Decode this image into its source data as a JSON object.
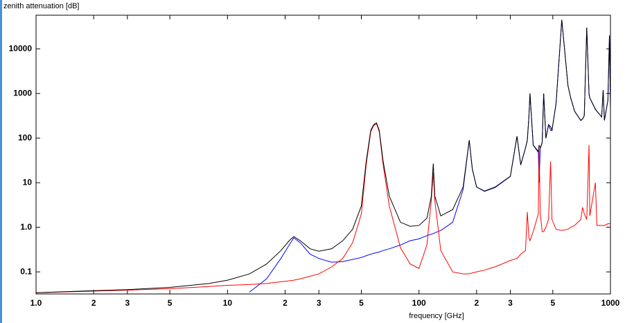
{
  "chart_data": {
    "type": "line",
    "y_label": "zenith attenuation [dB]",
    "x_label": "frequency [GHz]",
    "log_x": true,
    "log_y": true,
    "xlim": [
      1,
      1000
    ],
    "ylim": [
      0.032,
      57000
    ],
    "xticks": [
      {
        "value": 1,
        "label": "1.0"
      },
      2,
      3,
      5,
      10,
      {
        "value": 20,
        "label": "2"
      },
      {
        "value": 30,
        "label": "3"
      },
      {
        "value": 50,
        "label": "5"
      },
      100,
      {
        "value": 200,
        "label": "2"
      },
      {
        "value": 300,
        "label": "3"
      },
      {
        "value": 500,
        "label": "5"
      },
      1000
    ],
    "yticks": [
      0.1,
      {
        "value": 1,
        "label": "1.0"
      },
      10,
      100,
      1000,
      10000
    ],
    "x": [
      1,
      2,
      3,
      5,
      8,
      10,
      13,
      16,
      19,
      21,
      22.2,
      24,
      27,
      30,
      35,
      40,
      45,
      50,
      53,
      56,
      58,
      60,
      62,
      65,
      70,
      80,
      90,
      100,
      110,
      116,
      118.75,
      121,
      130,
      150,
      170,
      183,
      190,
      200,
      220,
      250,
      300,
      325,
      340,
      360,
      368,
      375,
      380,
      395,
      420,
      424,
      430,
      440,
      448,
      460,
      475,
      487,
      495,
      520,
      557,
      600,
      620,
      650,
      700,
      715,
      730,
      752,
      773,
      780,
      834,
      850,
      900,
      916,
      930,
      970,
      988,
      1000
    ],
    "series": [
      {
        "color": "#0000ff",
        "values": [
          null,
          null,
          null,
          null,
          null,
          null,
          0.035,
          0.07,
          0.2,
          0.4,
          0.58,
          0.45,
          0.25,
          0.2,
          0.165,
          0.17,
          0.19,
          0.21,
          0.23,
          0.25,
          0.26,
          0.27,
          0.28,
          0.3,
          0.33,
          0.4,
          0.5,
          0.55,
          0.65,
          0.7,
          0.72,
          0.75,
          0.85,
          1.3,
          7,
          90,
          20,
          8,
          6.4,
          7.8,
          13.8,
          110,
          25,
          60,
          88,
          300,
          1000,
          69,
          48,
          10,
          58,
          79,
          1000,
          99,
          198,
          150,
          148,
          599,
          45000,
          1500,
          799,
          399,
          248,
          267,
          318,
          30000,
          930,
          798,
          440,
          399,
          299,
          1199,
          249,
          699,
          20000,
          499
        ]
      },
      {
        "color": "#ff0000",
        "values": [
          0.034,
          0.037,
          0.039,
          0.042,
          0.047,
          0.05,
          0.052,
          0.055,
          0.06,
          0.063,
          0.065,
          0.07,
          0.08,
          0.09,
          0.13,
          0.2,
          0.45,
          2,
          25,
          140,
          190,
          210,
          140,
          25,
          3,
          0.35,
          0.15,
          0.12,
          0.4,
          4,
          17,
          4,
          0.3,
          0.1,
          0.09,
          0.09,
          0.095,
          0.1,
          0.11,
          0.13,
          0.18,
          0.2,
          0.25,
          0.3,
          2.2,
          0.6,
          0.5,
          0.8,
          2,
          60,
          2,
          0.8,
          0.8,
          1,
          1.5,
          30,
          1.5,
          0.9,
          0.85,
          0.9,
          1.0,
          1.1,
          1.5,
          2.8,
          2,
          1.5,
          70,
          1.8,
          10,
          1.1,
          1.1,
          1.1,
          1.1,
          1.2,
          1.2,
          1.2
        ]
      },
      {
        "color": "#000000",
        "values": [
          0.034,
          0.038,
          0.04,
          0.045,
          0.055,
          0.065,
          0.09,
          0.15,
          0.3,
          0.5,
          0.62,
          0.5,
          0.33,
          0.29,
          0.33,
          0.5,
          0.9,
          3,
          30,
          150,
          200,
          220,
          150,
          30,
          5,
          1.3,
          1.05,
          1.1,
          1.6,
          5,
          27,
          5,
          1.8,
          2.5,
          8,
          90,
          20,
          8,
          6.5,
          8,
          14,
          110,
          25,
          60,
          90,
          300,
          1000,
          70,
          50,
          70,
          60,
          80,
          1000,
          100,
          200,
          180,
          150,
          600,
          45000,
          1500,
          800,
          400,
          250,
          270,
          320,
          30000,
          1000,
          800,
          450,
          400,
          300,
          1200,
          250,
          700,
          20000,
          500
        ]
      }
    ]
  }
}
